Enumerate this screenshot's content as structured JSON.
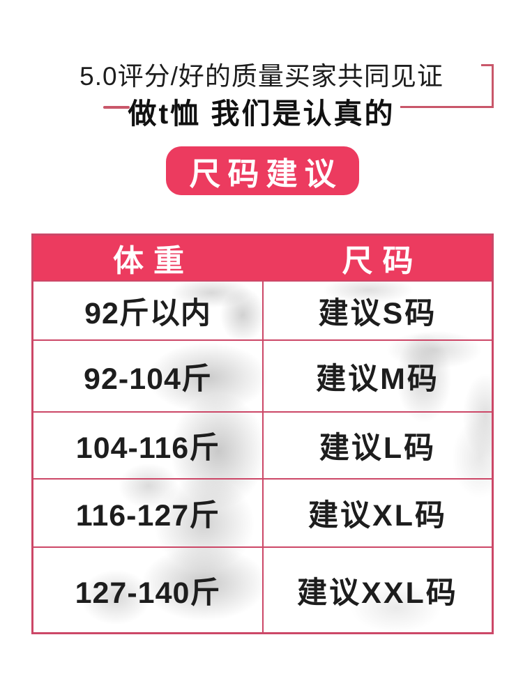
{
  "colors": {
    "accent": "#ec3b5f",
    "table_border": "#cc4767",
    "decor_line": "#c9576a",
    "text_dark": "#1d1d1d",
    "header_text": "#ffffff"
  },
  "intro": {
    "rating_line": "5.0评分/好的质量买家共同见证",
    "slogan": "做t恤 我们是认真的"
  },
  "size_button": {
    "label": "尺码建议"
  },
  "table": {
    "columns": [
      {
        "key": "weight",
        "label": "体重"
      },
      {
        "key": "size",
        "label": "尺码"
      }
    ],
    "rows": [
      {
        "weight": "92斤以内",
        "size": "建议S码"
      },
      {
        "weight": "92-104斤",
        "size": "建议M码"
      },
      {
        "weight": "104-116斤",
        "size": "建议L码"
      },
      {
        "weight": "116-127斤",
        "size": "建议XL码"
      },
      {
        "weight": "127-140斤",
        "size": "建议XXL码"
      }
    ]
  }
}
